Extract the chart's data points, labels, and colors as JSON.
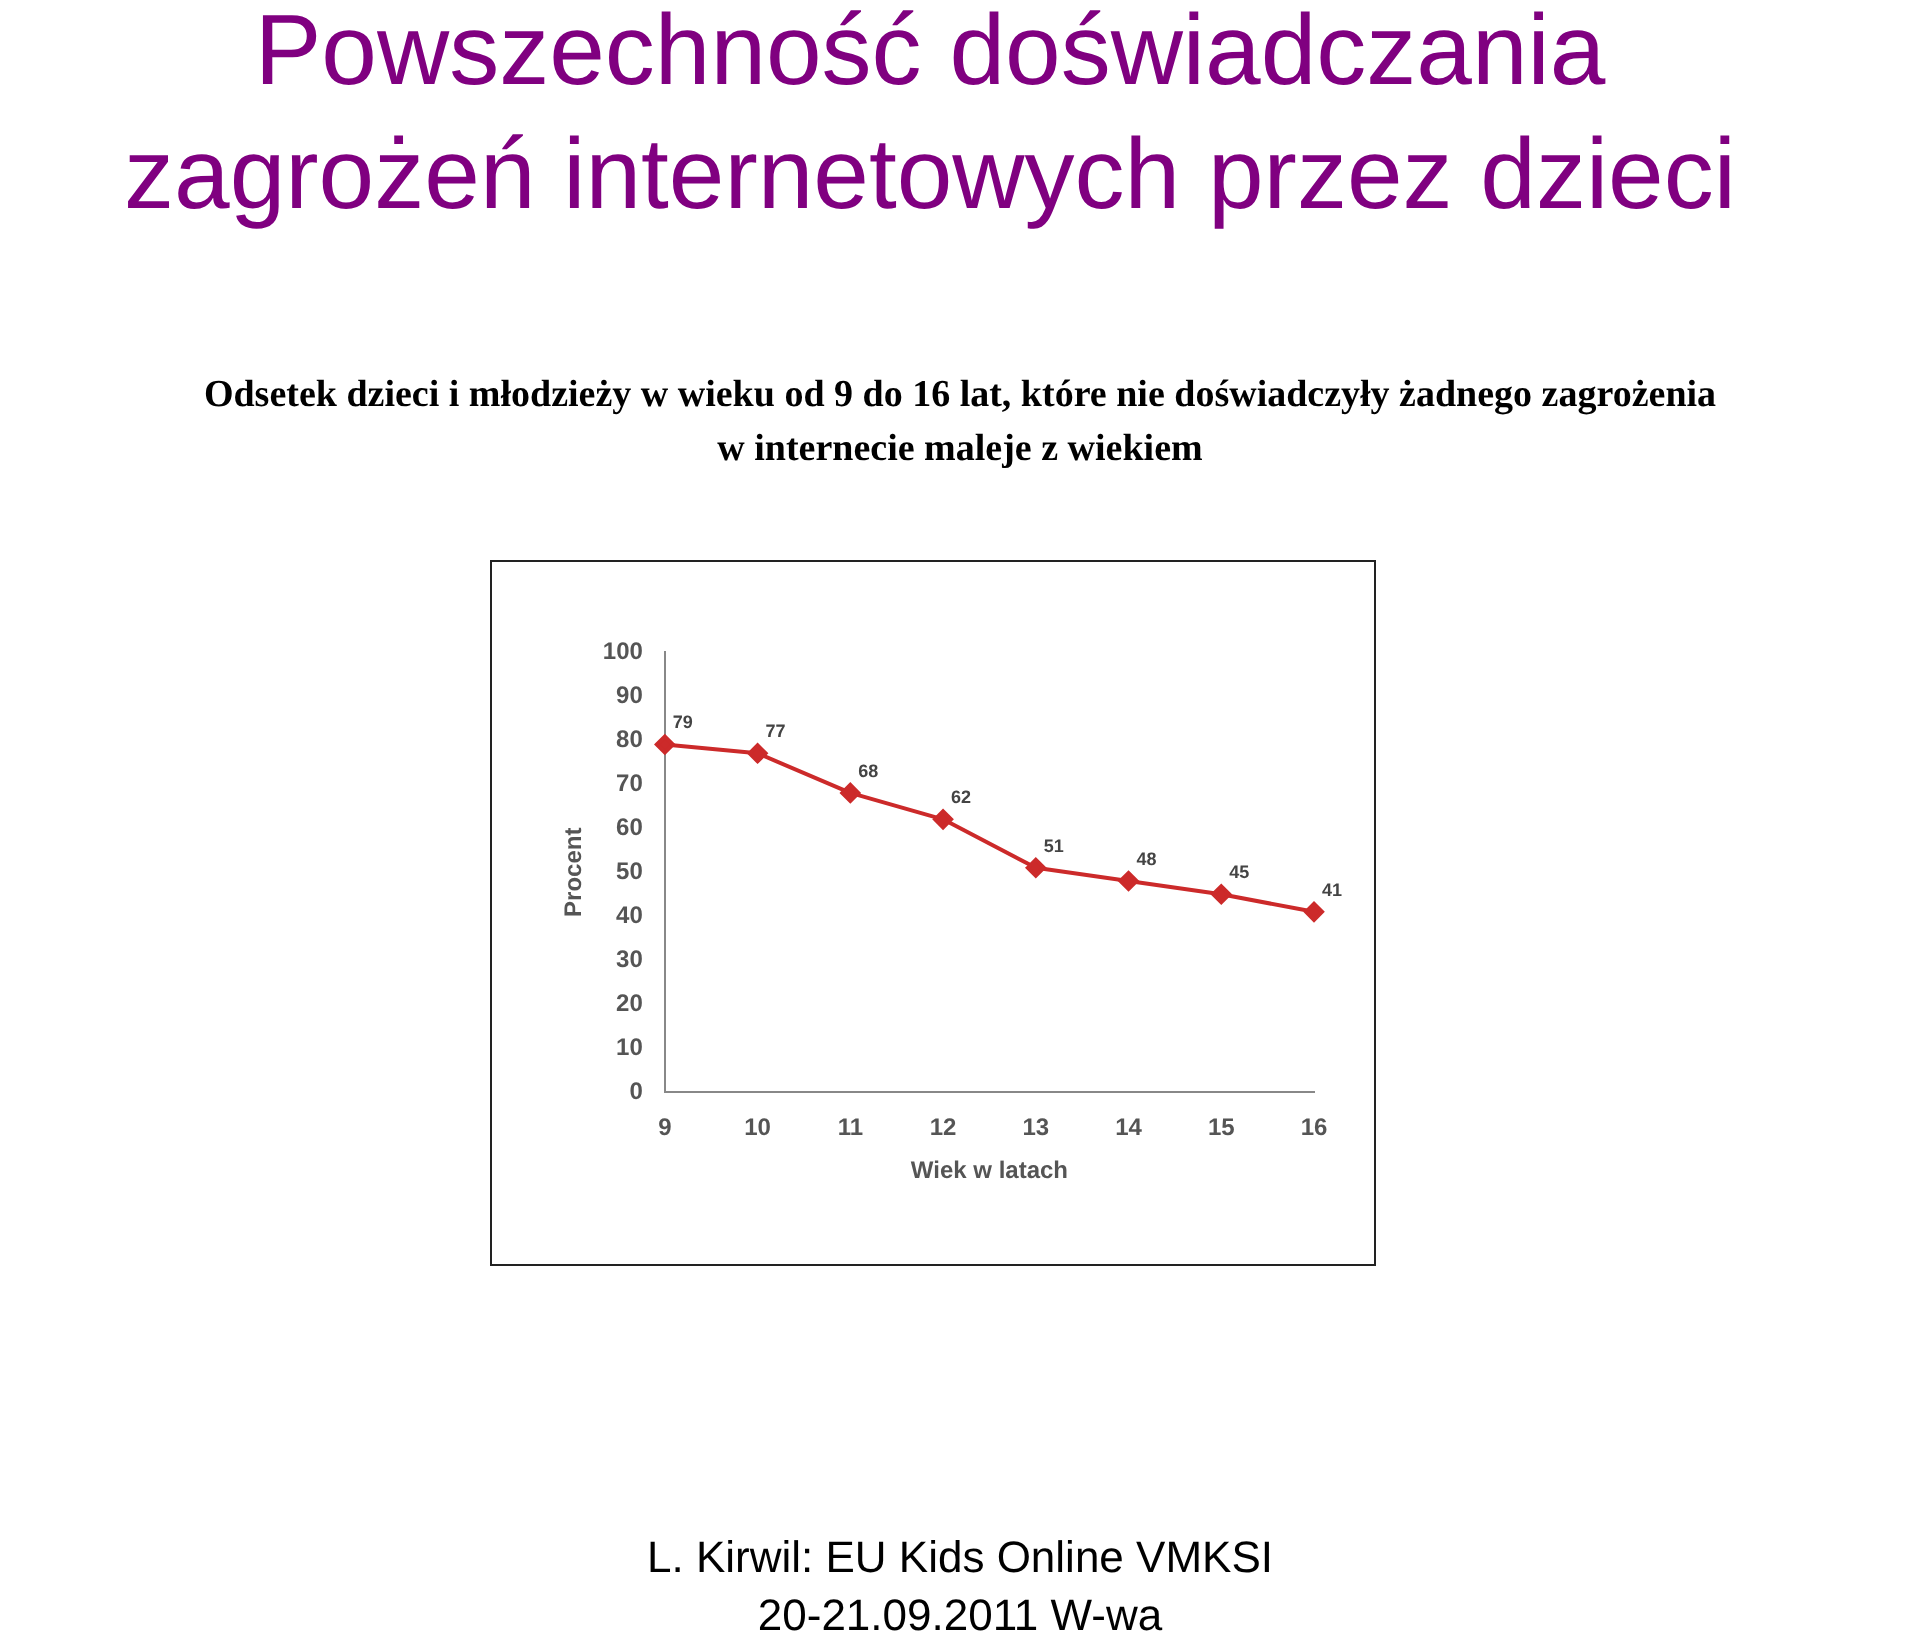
{
  "chart_data": {
    "type": "line",
    "title": "Powszechność doświadczania zagrożeń internetowych  przez dzieci",
    "subtitle": "Odsetek dzieci i młodzieży w wieku od 9 do 16 lat, które nie doświadczyły żadnego zagrożenia w internecie maleje z wiekiem",
    "xlabel": "Wiek w latach",
    "ylabel": "Procent",
    "categories": [
      "9",
      "10",
      "11",
      "12",
      "13",
      "14",
      "15",
      "16"
    ],
    "series": [
      {
        "color": "#cc2a2a",
        "values": [
          79,
          77,
          68,
          62,
          51,
          48,
          45,
          41
        ]
      }
    ],
    "ylim": [
      0,
      100
    ],
    "yticks": [
      0,
      10,
      20,
      30,
      40,
      50,
      60,
      70,
      80,
      90,
      100
    ],
    "grid": false,
    "legend": false,
    "marker": "diamond",
    "line_style": "solid",
    "data_labels": true,
    "annotations": [
      "L. Kirwil: EU Kids Online VMKSI",
      "20-21.09.2011 W-wa"
    ]
  }
}
